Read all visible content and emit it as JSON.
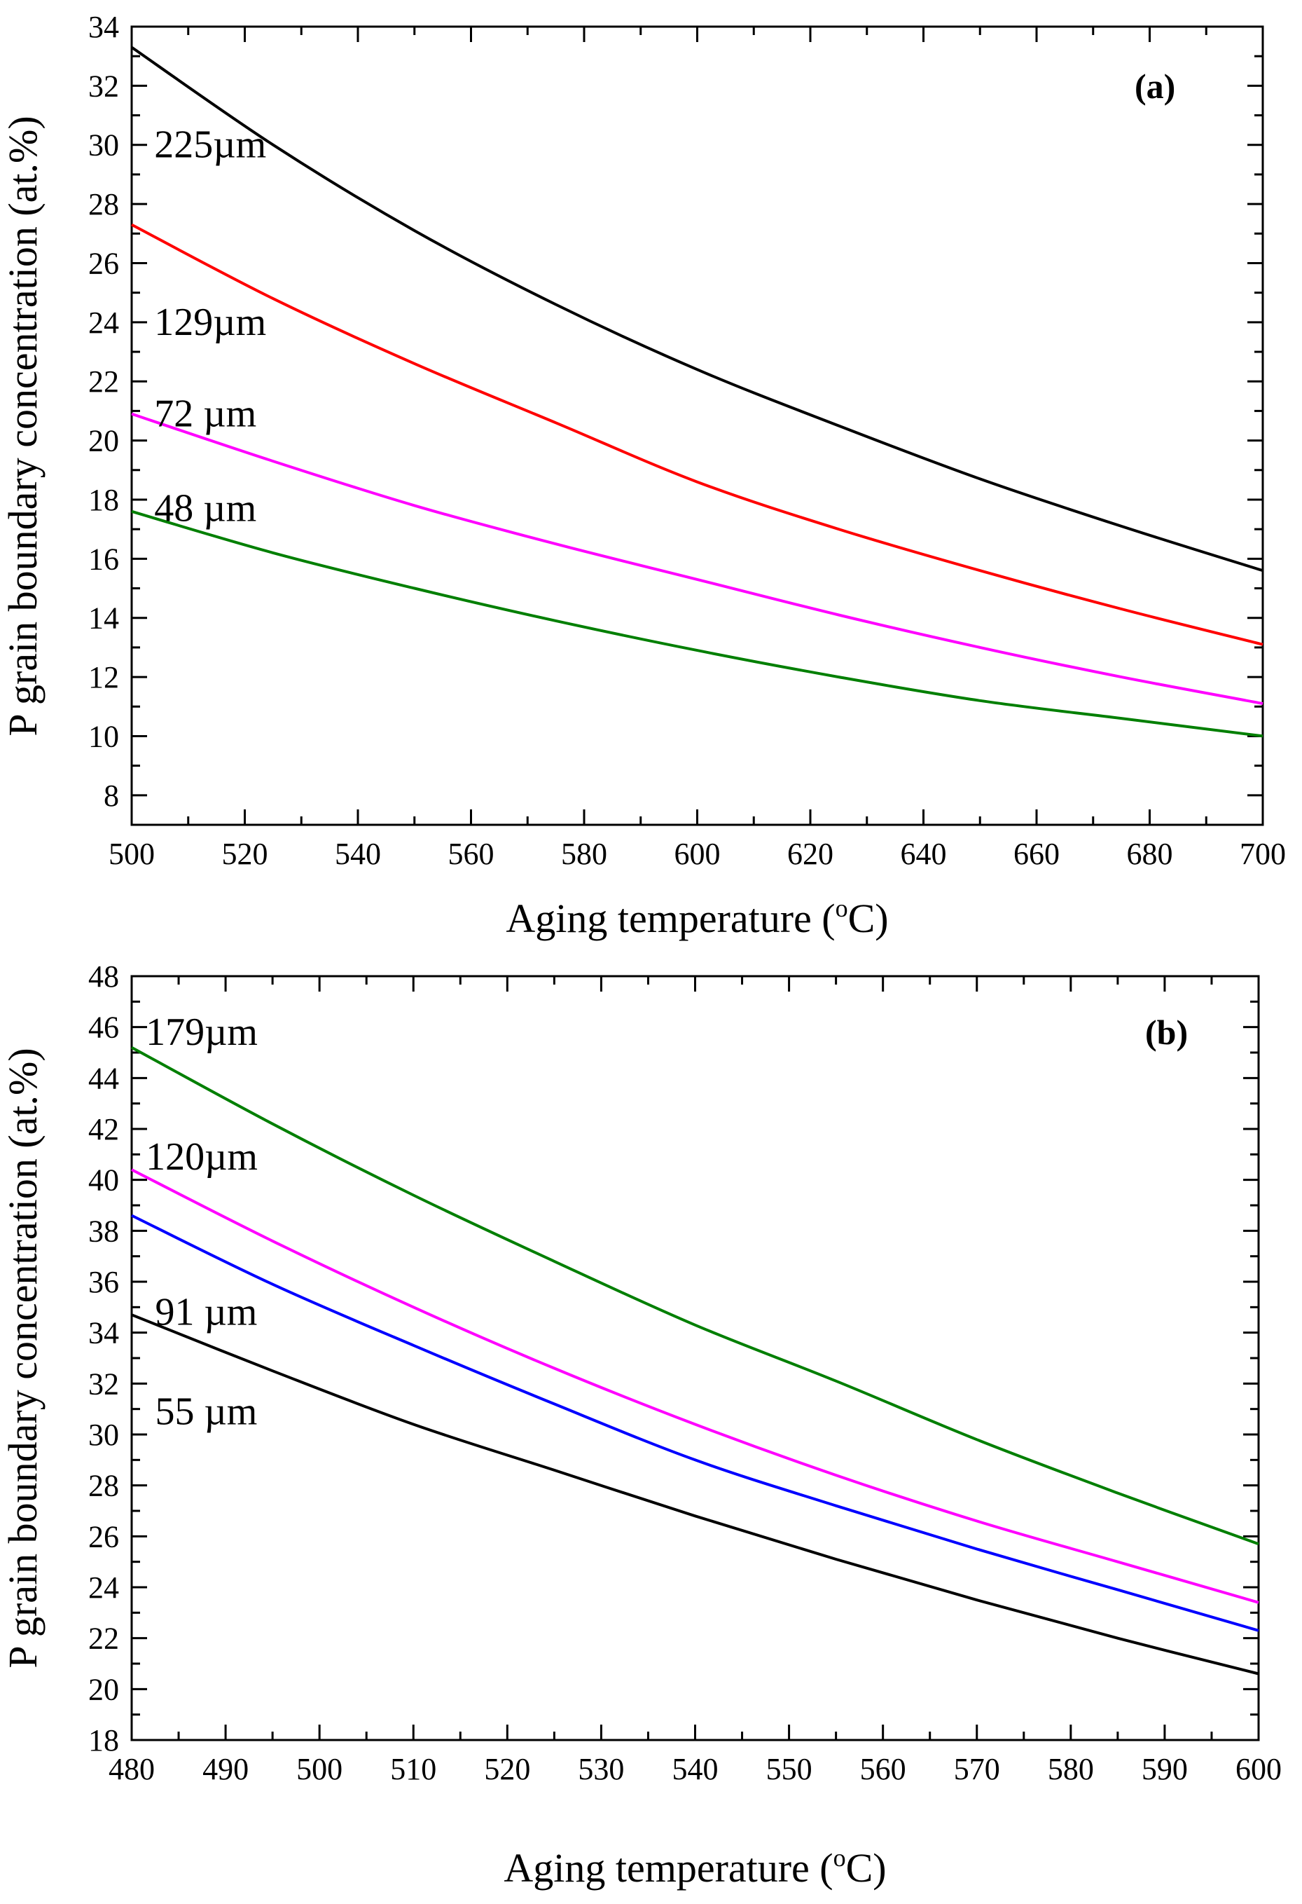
{
  "chart_data": [
    {
      "id": "a",
      "type": "line",
      "panel_label": "(a)",
      "xlabel": "Aging temperature (",
      "xlabel_sup": "o",
      "xlabel_end": "C)",
      "ylabel": "P grain boundary concentration (at.%)",
      "xlim": [
        500,
        700
      ],
      "ylim": [
        7,
        34
      ],
      "x_ticks": [
        500,
        520,
        540,
        560,
        580,
        600,
        620,
        640,
        660,
        680,
        700
      ],
      "y_ticks": [
        8,
        10,
        12,
        14,
        16,
        18,
        20,
        22,
        24,
        26,
        28,
        30,
        32,
        34
      ],
      "x": [
        500,
        525,
        550,
        575,
        600,
        625,
        650,
        675,
        700
      ],
      "series": [
        {
          "name": "225µm",
          "label": "225µm",
          "color": "#000000",
          "values": [
            33.3,
            30.0,
            27.1,
            24.6,
            22.4,
            20.5,
            18.7,
            17.1,
            15.6
          ]
        },
        {
          "name": "129µm",
          "label": "129µm",
          "color": "#ff0000",
          "values": [
            27.3,
            24.8,
            22.6,
            20.6,
            18.6,
            17.0,
            15.6,
            14.3,
            13.1
          ]
        },
        {
          "name": "72 µm",
          "label": "72 µm",
          "color": "#ff00ff",
          "values": [
            20.9,
            19.3,
            17.8,
            16.5,
            15.3,
            14.1,
            13.0,
            12.0,
            11.1
          ]
        },
        {
          "name": "48 µm",
          "label": "48 µm",
          "color": "#007f00",
          "values": [
            17.6,
            16.2,
            15.0,
            13.9,
            12.9,
            12.0,
            11.2,
            10.6,
            10.0
          ]
        }
      ]
    },
    {
      "id": "b",
      "type": "line",
      "panel_label": "(b)",
      "xlabel": "Aging temperature (",
      "xlabel_sup": "o",
      "xlabel_end": "C)",
      "ylabel": "P grain boundary concentration (at.%)",
      "xlim": [
        480,
        600
      ],
      "ylim": [
        18,
        48
      ],
      "x_ticks": [
        480,
        490,
        500,
        510,
        520,
        530,
        540,
        550,
        560,
        570,
        580,
        590,
        600
      ],
      "y_ticks": [
        18,
        20,
        22,
        24,
        26,
        28,
        30,
        32,
        34,
        36,
        38,
        40,
        42,
        44,
        46,
        48
      ],
      "x": [
        480,
        495,
        510,
        525,
        540,
        555,
        570,
        585,
        600
      ],
      "series": [
        {
          "name": "179µm",
          "label": "179µm",
          "color": "#007f00",
          "values": [
            45.2,
            42.2,
            39.4,
            36.8,
            34.3,
            32.1,
            29.8,
            27.7,
            25.7
          ]
        },
        {
          "name": "120µm",
          "label": "120µm",
          "color": "#ff00ff",
          "values": [
            40.4,
            37.6,
            35.0,
            32.6,
            30.4,
            28.4,
            26.6,
            25.0,
            23.4
          ]
        },
        {
          "name": "91 µm",
          "label": "91 µm",
          "color": "#0000ff",
          "values": [
            38.6,
            35.9,
            33.5,
            31.2,
            29.0,
            27.2,
            25.5,
            23.9,
            22.3
          ]
        },
        {
          "name": "55 µm",
          "label": "55 µm",
          "color": "#000000",
          "values": [
            34.7,
            32.5,
            30.4,
            28.6,
            26.8,
            25.1,
            23.5,
            22.0,
            20.6
          ]
        }
      ]
    }
  ]
}
